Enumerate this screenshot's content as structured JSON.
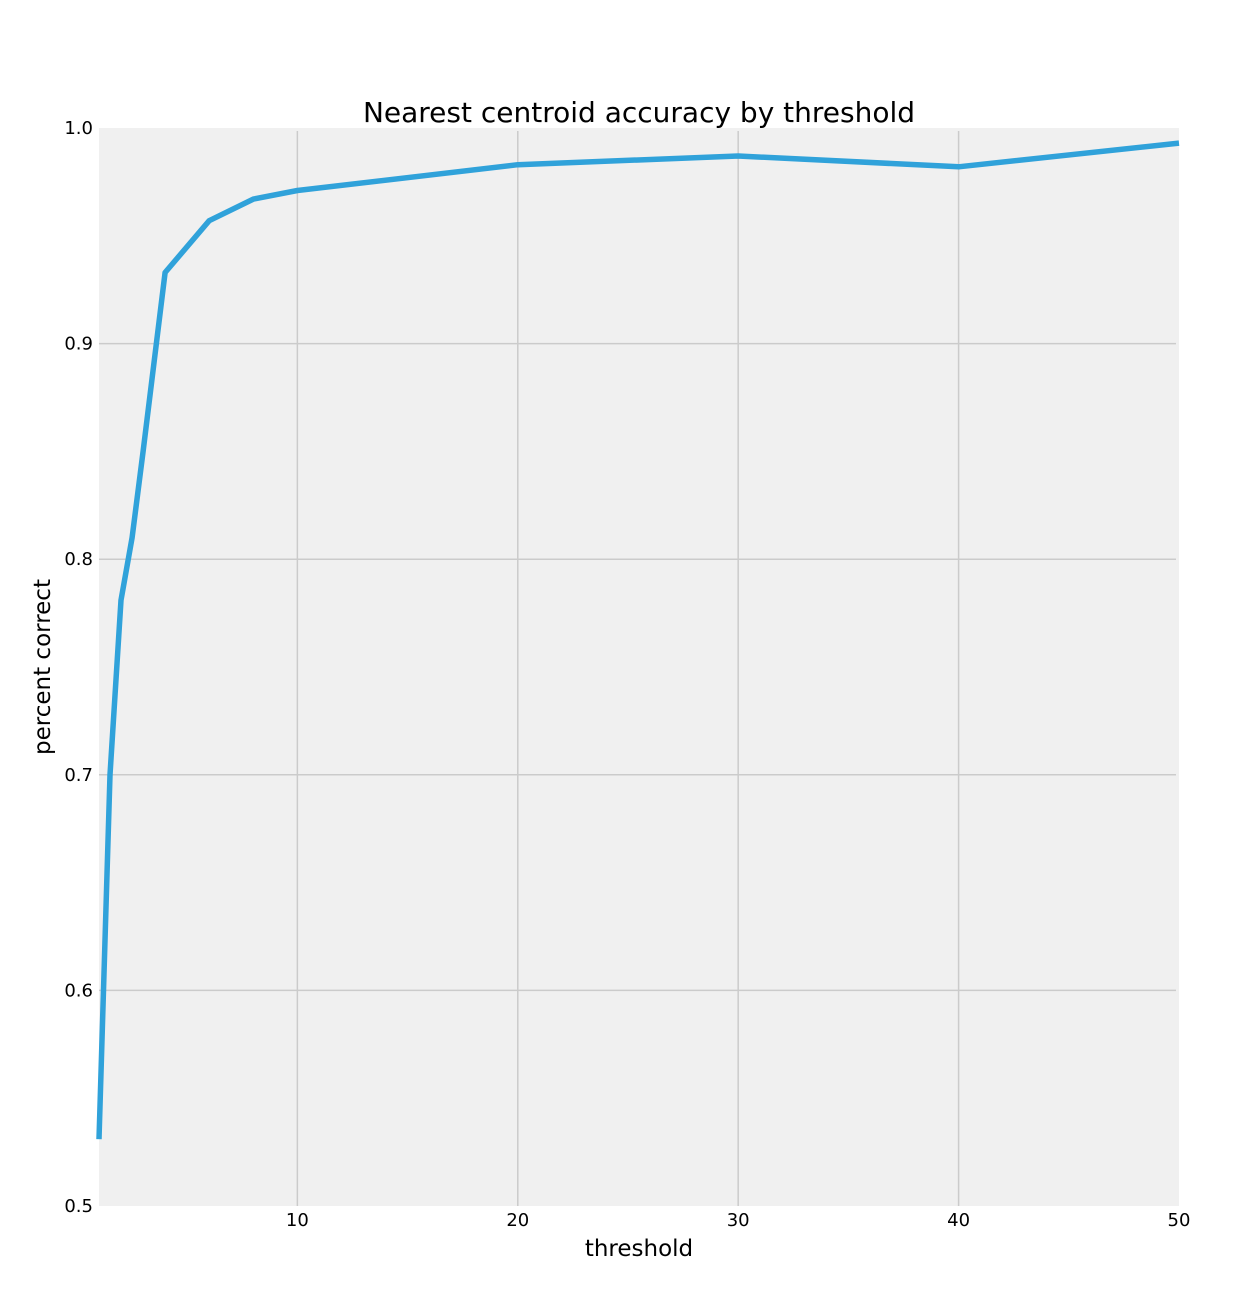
{
  "chart_data": {
    "type": "line",
    "title": "Nearest centroid accuracy by threshold",
    "xlabel": "threshold",
    "ylabel": "percent correct",
    "xlim": [
      1,
      50
    ],
    "ylim": [
      0.5,
      1.0
    ],
    "xticks": [
      10,
      20,
      30,
      40,
      50
    ],
    "yticks": [
      0.5,
      0.6,
      0.7,
      0.8,
      0.9,
      1.0
    ],
    "xtick_labels": [
      "10",
      "20",
      "30",
      "40",
      "50"
    ],
    "ytick_labels": [
      "0.5",
      "0.6",
      "0.7",
      "0.8",
      "0.9",
      "1.0"
    ],
    "grid": true,
    "series": [
      {
        "color": "#30a2da",
        "x": [
          1,
          1.5,
          2,
          2.5,
          3,
          4,
          6,
          8,
          10,
          20,
          30,
          40,
          50
        ],
        "y": [
          0.531,
          0.7,
          0.781,
          0.81,
          0.85,
          0.933,
          0.957,
          0.967,
          0.971,
          0.983,
          0.987,
          0.982,
          0.993
        ]
      }
    ]
  }
}
